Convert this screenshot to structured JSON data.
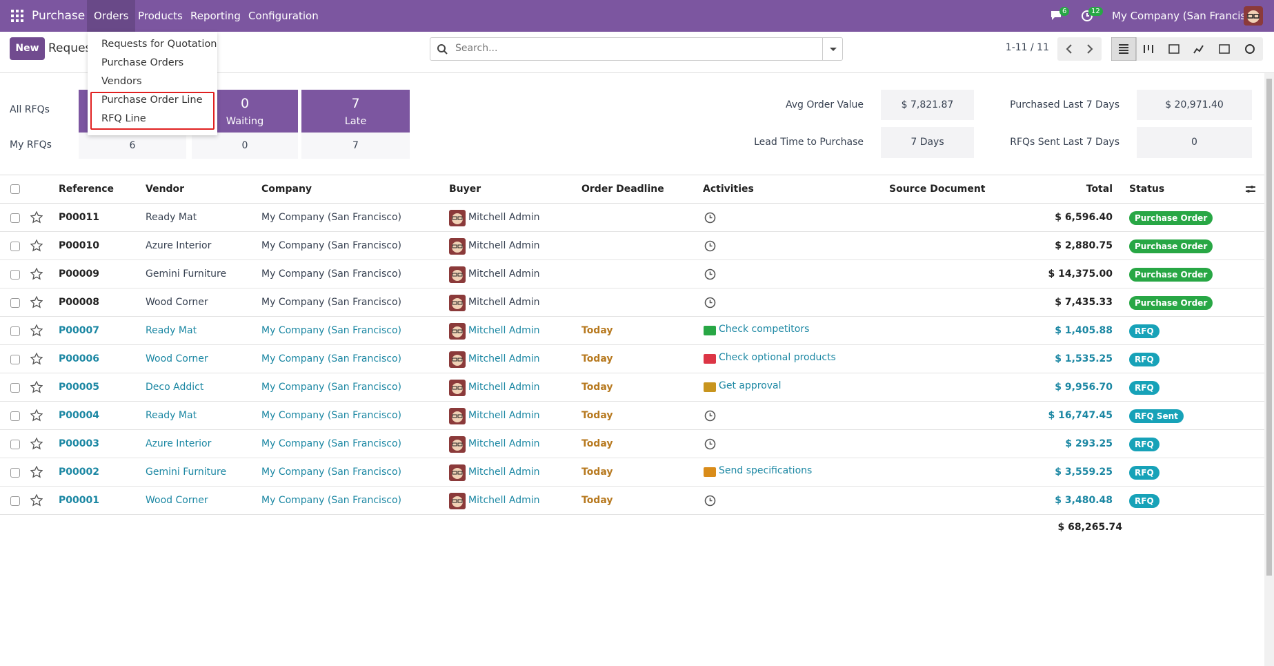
{
  "navbar": {
    "app": "Purchase",
    "menus": [
      "Orders",
      "Products",
      "Reporting",
      "Configuration"
    ],
    "messages_badge": "6",
    "activities_badge": "12",
    "company": "My Company (San Francisco)"
  },
  "orders_menu": {
    "items": [
      "Requests for Quotation",
      "Purchase Orders",
      "Vendors",
      "Purchase Order Line",
      "RFQ Line"
    ]
  },
  "control_panel": {
    "new_button": "New",
    "title": "Requests for Quotation",
    "search_placeholder": "Search...",
    "pager": "1-11 / 11"
  },
  "dashboard": {
    "all_label": "All RFQs",
    "my_label": "My RFQs",
    "tiles": [
      {
        "value": "0",
        "label": "Waiting"
      },
      {
        "value": "7",
        "label": "Late"
      }
    ],
    "my_values": [
      "6",
      "0",
      "7"
    ],
    "stats": [
      {
        "label": "Avg Order Value",
        "value": "$ 7,821.87"
      },
      {
        "label": "Lead Time to Purchase",
        "value": "7 Days"
      },
      {
        "label": "Purchased Last 7 Days",
        "value": "$ 20,971.40"
      },
      {
        "label": "RFQs Sent Last 7 Days",
        "value": "0"
      }
    ]
  },
  "table": {
    "headers": [
      "Reference",
      "Vendor",
      "Company",
      "Buyer",
      "Order Deadline",
      "Activities",
      "Source Document",
      "Total",
      "Status"
    ],
    "rows": [
      {
        "reference": "P00011",
        "vendor": "Ready Mat",
        "company": "My Company (San Francisco)",
        "buyer": "Mitchell Admin",
        "deadline": null,
        "activity": null,
        "activity_color": null,
        "total": "$ 6,596.40",
        "status": "Purchase Order",
        "status_color": "#28a745"
      },
      {
        "reference": "P00010",
        "vendor": "Azure Interior",
        "company": "My Company (San Francisco)",
        "buyer": "Mitchell Admin",
        "deadline": null,
        "activity": null,
        "activity_color": null,
        "total": "$ 2,880.75",
        "status": "Purchase Order",
        "status_color": "#28a745"
      },
      {
        "reference": "P00009",
        "vendor": "Gemini Furniture",
        "company": "My Company (San Francisco)",
        "buyer": "Mitchell Admin",
        "deadline": null,
        "activity": null,
        "activity_color": null,
        "total": "$ 14,375.00",
        "status": "Purchase Order",
        "status_color": "#28a745"
      },
      {
        "reference": "P00008",
        "vendor": "Wood Corner",
        "company": "My Company (San Francisco)",
        "buyer": "Mitchell Admin",
        "deadline": null,
        "activity": null,
        "activity_color": null,
        "total": "$ 7,435.33",
        "status": "Purchase Order",
        "status_color": "#28a745"
      },
      {
        "reference": "P00007",
        "vendor": "Ready Mat",
        "company": "My Company (San Francisco)",
        "buyer": "Mitchell Admin",
        "deadline": "Today",
        "activity": "Check competitors",
        "activity_color": "#28a745",
        "total": "$ 1,405.88",
        "status": "RFQ",
        "status_color": "#17a2b8"
      },
      {
        "reference": "P00006",
        "vendor": "Wood Corner",
        "company": "My Company (San Francisco)",
        "buyer": "Mitchell Admin",
        "deadline": "Today",
        "activity": "Check optional products",
        "activity_color": "#dc3545",
        "total": "$ 1,535.25",
        "status": "RFQ",
        "status_color": "#17a2b8"
      },
      {
        "reference": "P00005",
        "vendor": "Deco Addict",
        "company": "My Company (San Francisco)",
        "buyer": "Mitchell Admin",
        "deadline": "Today",
        "activity": "Get approval",
        "activity_color": "#c8951e",
        "total": "$ 9,956.70",
        "status": "RFQ",
        "status_color": "#17a2b8"
      },
      {
        "reference": "P00004",
        "vendor": "Ready Mat",
        "company": "My Company (San Francisco)",
        "buyer": "Mitchell Admin",
        "deadline": "Today",
        "activity": null,
        "activity_color": null,
        "total": "$ 16,747.45",
        "status": "RFQ Sent",
        "status_color": "#17a2b8"
      },
      {
        "reference": "P00003",
        "vendor": "Azure Interior",
        "company": "My Company (San Francisco)",
        "buyer": "Mitchell Admin",
        "deadline": "Today",
        "activity": null,
        "activity_color": null,
        "total": "$ 293.25",
        "status": "RFQ",
        "status_color": "#17a2b8"
      },
      {
        "reference": "P00002",
        "vendor": "Gemini Furniture",
        "company": "My Company (San Francisco)",
        "buyer": "Mitchell Admin",
        "deadline": "Today",
        "activity": "Send specifications",
        "activity_color": "#d98c1a",
        "total": "$ 3,559.25",
        "status": "RFQ",
        "status_color": "#17a2b8"
      },
      {
        "reference": "P00001",
        "vendor": "Wood Corner",
        "company": "My Company (San Francisco)",
        "buyer": "Mitchell Admin",
        "deadline": "Today",
        "activity": null,
        "activity_color": null,
        "total": "$ 3,480.48",
        "status": "RFQ",
        "status_color": "#17a2b8"
      }
    ],
    "sum_total": "$ 68,265.74"
  }
}
